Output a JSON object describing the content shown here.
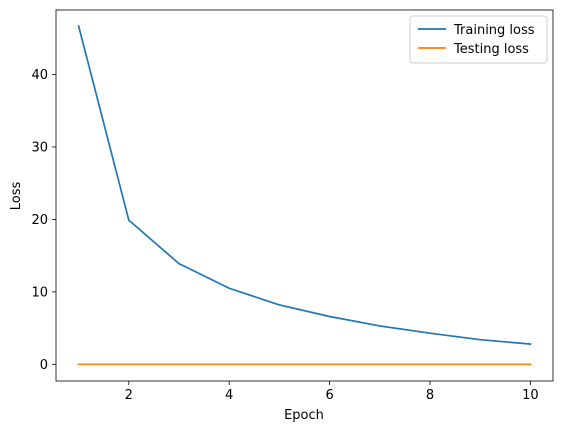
{
  "chart_data": {
    "type": "line",
    "title": "",
    "xlabel": "Epoch",
    "ylabel": "Loss",
    "x": [
      1,
      2,
      3,
      4,
      5,
      6,
      7,
      8,
      9,
      10
    ],
    "xlim": [
      0.55,
      10.45
    ],
    "ylim": [
      -2.3,
      48.9
    ],
    "xticks": [
      2,
      4,
      6,
      8,
      10
    ],
    "yticks": [
      0,
      10,
      20,
      30,
      40
    ],
    "grid": false,
    "legend_position": "top-right",
    "series": [
      {
        "name": "Training loss",
        "color": "#1f77b4",
        "values": [
          46.7,
          19.9,
          13.9,
          10.5,
          8.2,
          6.6,
          5.3,
          4.3,
          3.4,
          2.8
        ]
      },
      {
        "name": "Testing loss",
        "color": "#ff7f0e",
        "values": [
          0.0,
          0.0,
          0.0,
          0.0,
          0.0,
          0.0,
          0.0,
          0.0,
          0.0,
          0.0
        ]
      }
    ]
  }
}
